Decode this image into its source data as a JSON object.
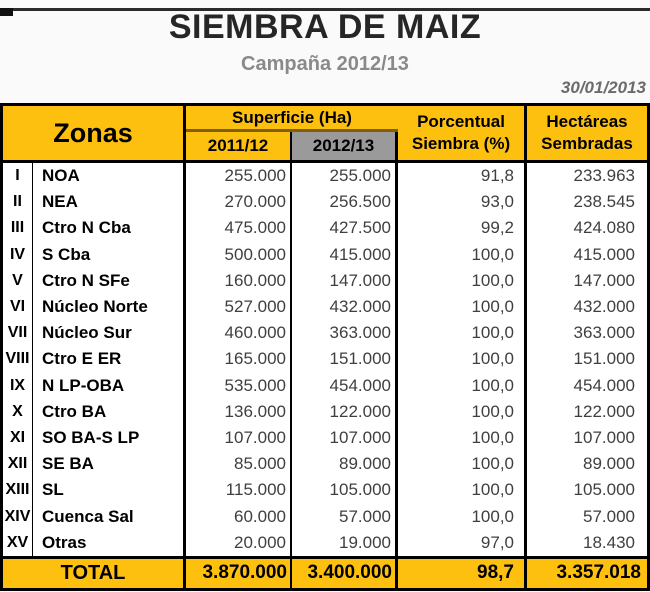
{
  "page": {
    "title": "SIEMBRA DE MAIZ",
    "subtitle": "Campaña 2012/13",
    "date": "30/01/2013"
  },
  "colors": {
    "accent_yellow": "#FEC00F",
    "subheader_gray": "#9A9A9A",
    "superficie_rule_brown": "#7E6000",
    "border_black": "#000000"
  },
  "table": {
    "headers": {
      "zones": "Zonas",
      "surface_group": "Superficie (Ha)",
      "col_2011_12": "2011/12",
      "col_2012_13": "2012/13",
      "percent_line1": "Porcentual",
      "percent_line2": "Siembra (%)",
      "hectares_line1": "Hectáreas",
      "hectares_line2": "Sembradas"
    },
    "rows": [
      {
        "num": "I",
        "zone": "NOA",
        "s2011": "255.000",
        "s2012": "255.000",
        "pct": "91,8",
        "ha": "233.963"
      },
      {
        "num": "II",
        "zone": "NEA",
        "s2011": "270.000",
        "s2012": "256.500",
        "pct": "93,0",
        "ha": "238.545"
      },
      {
        "num": "III",
        "zone": "Ctro N Cba",
        "s2011": "475.000",
        "s2012": "427.500",
        "pct": "99,2",
        "ha": "424.080"
      },
      {
        "num": "IV",
        "zone": "S Cba",
        "s2011": "500.000",
        "s2012": "415.000",
        "pct": "100,0",
        "ha": "415.000"
      },
      {
        "num": "V",
        "zone": "Ctro N SFe",
        "s2011": "160.000",
        "s2012": "147.000",
        "pct": "100,0",
        "ha": "147.000"
      },
      {
        "num": "VI",
        "zone": "Núcleo Norte",
        "s2011": "527.000",
        "s2012": "432.000",
        "pct": "100,0",
        "ha": "432.000"
      },
      {
        "num": "VII",
        "zone": "Núcleo Sur",
        "s2011": "460.000",
        "s2012": "363.000",
        "pct": "100,0",
        "ha": "363.000"
      },
      {
        "num": "VIII",
        "zone": "Ctro E ER",
        "s2011": "165.000",
        "s2012": "151.000",
        "pct": "100,0",
        "ha": "151.000"
      },
      {
        "num": "IX",
        "zone": "N LP-OBA",
        "s2011": "535.000",
        "s2012": "454.000",
        "pct": "100,0",
        "ha": "454.000"
      },
      {
        "num": "X",
        "zone": "Ctro BA",
        "s2011": "136.000",
        "s2012": "122.000",
        "pct": "100,0",
        "ha": "122.000"
      },
      {
        "num": "XI",
        "zone": "SO BA-S LP",
        "s2011": "107.000",
        "s2012": "107.000",
        "pct": "100,0",
        "ha": "107.000"
      },
      {
        "num": "XII",
        "zone": "SE BA",
        "s2011": "85.000",
        "s2012": "89.000",
        "pct": "100,0",
        "ha": "89.000"
      },
      {
        "num": "XIII",
        "zone": "SL",
        "s2011": "115.000",
        "s2012": "105.000",
        "pct": "100,0",
        "ha": "105.000"
      },
      {
        "num": "XIV",
        "zone": "Cuenca Sal",
        "s2011": "60.000",
        "s2012": "57.000",
        "pct": "100,0",
        "ha": "57.000"
      },
      {
        "num": "XV",
        "zone": "Otras",
        "s2011": "20.000",
        "s2012": "19.000",
        "pct": "97,0",
        "ha": "18.430"
      }
    ],
    "total": {
      "label": "TOTAL",
      "s2011": "3.870.000",
      "s2012": "3.400.000",
      "pct": "98,7",
      "ha": "3.357.018"
    }
  }
}
